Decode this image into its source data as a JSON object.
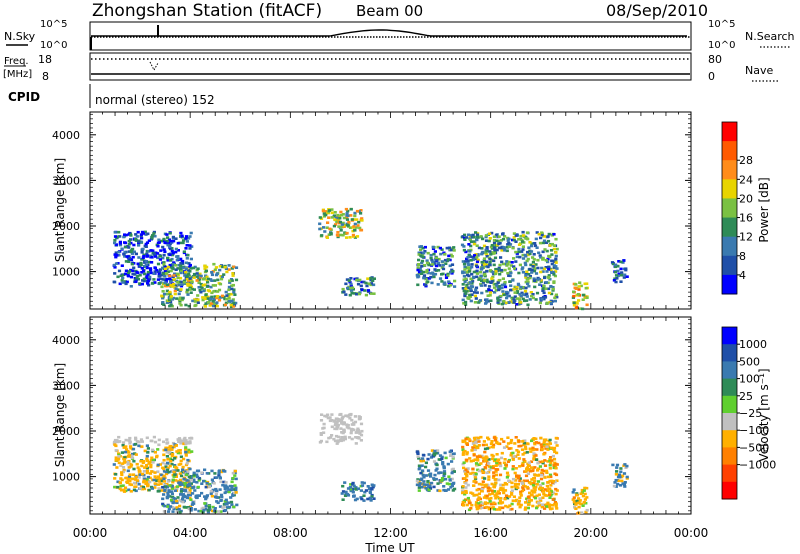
{
  "header": {
    "station": "Zhongshan Station (fitACF)",
    "beam": "Beam 00",
    "date": "08/Sep/2010"
  },
  "status_panel": {
    "nsky_label": "N.Sky",
    "nsearch_label": "N.Search",
    "noise_ticks_left": [
      "10^5",
      "10^0"
    ],
    "noise_ticks_right": [
      "10^5",
      "10^0"
    ],
    "freq_label_line1": "Freq.",
    "freq_label_line2": "[MHz]",
    "freq_ticks": [
      "18",
      "8"
    ],
    "nave_label": "Nave",
    "nave_ticks": [
      "80",
      "0"
    ],
    "cpid_label": "CPID",
    "cpid_text": "normal (stereo) 152"
  },
  "colors": {
    "power": [
      "#0000ff",
      "#1f4fa8",
      "#3a7ab0",
      "#2e8b57",
      "#7ac143",
      "#e8d400",
      "#ff8c1a",
      "#ff5a00",
      "#ff0000"
    ],
    "velocity": [
      "#0000ff",
      "#1f4fa8",
      "#3a7ab0",
      "#2e8b57",
      "#5fcf2f",
      "#c0c0c0",
      "#ffb000",
      "#ff8000",
      "#ff4000",
      "#ff0000"
    ],
    "ground_scatter": "#c0c0c0"
  },
  "chart_data": [
    {
      "type": "heatmap",
      "name": "power",
      "ylabel": "Slant Range [km]",
      "xlabel": "",
      "ylim": [
        180,
        4500
      ],
      "xlim": [
        0,
        24
      ],
      "yticks": [
        "1000",
        "2000",
        "3000",
        "4000"
      ],
      "xticks": [
        "00:00",
        "04:00",
        "08:00",
        "12:00",
        "16:00",
        "20:00",
        "00:00"
      ],
      "colorbar_label": "Power [dB]",
      "colorbar_ticks": [
        "4",
        "8",
        "12",
        "16",
        "20",
        "24",
        "28"
      ],
      "regions": [
        {
          "t": [
            0.9,
            4.0
          ],
          "r": [
            700,
            1900
          ],
          "v": 6
        },
        {
          "t": [
            2.8,
            5.8
          ],
          "r": [
            250,
            1200
          ],
          "v": 14
        },
        {
          "t": [
            9.1,
            10.8
          ],
          "r": [
            1750,
            2400
          ],
          "v": 16
        },
        {
          "t": [
            10.0,
            11.3
          ],
          "r": [
            500,
            900
          ],
          "v": 10
        },
        {
          "t": [
            13.0,
            14.5
          ],
          "r": [
            700,
            1600
          ],
          "v": 9
        },
        {
          "t": [
            14.8,
            18.6
          ],
          "r": [
            300,
            1900
          ],
          "v": 11
        },
        {
          "t": [
            19.2,
            19.8
          ],
          "r": [
            200,
            800
          ],
          "v": 20
        },
        {
          "t": [
            20.8,
            21.4
          ],
          "r": [
            800,
            1300
          ],
          "v": 6
        }
      ]
    },
    {
      "type": "heatmap",
      "name": "velocity",
      "ylabel": "Slant Range [km]",
      "xlabel": "Time UT",
      "ylim": [
        180,
        4500
      ],
      "xlim": [
        0,
        24
      ],
      "yticks": [
        "1000",
        "2000",
        "3000",
        "4000"
      ],
      "xticks": [
        "00:00",
        "04:00",
        "08:00",
        "12:00",
        "16:00",
        "20:00",
        "00:00"
      ],
      "colorbar_label": "Velocity [m s⁻¹]",
      "colorbar_ticks": [
        "1000",
        "500",
        "100",
        "25",
        "−25",
        "−100",
        "−500",
        "−1000"
      ],
      "regions": [
        {
          "t": [
            0.9,
            4.0
          ],
          "r": [
            700,
            1900
          ],
          "v": -150,
          "gs_band": [
            1750,
            1950
          ]
        },
        {
          "t": [
            2.8,
            5.8
          ],
          "r": [
            250,
            1200
          ],
          "v": 200
        },
        {
          "t": [
            9.1,
            10.8
          ],
          "r": [
            1750,
            2400
          ],
          "v": 0,
          "gs": true
        },
        {
          "t": [
            10.0,
            11.3
          ],
          "r": [
            500,
            900
          ],
          "v": 300
        },
        {
          "t": [
            13.0,
            14.5
          ],
          "r": [
            700,
            1600
          ],
          "v": 200
        },
        {
          "t": [
            14.8,
            18.6
          ],
          "r": [
            300,
            1900
          ],
          "v": -300
        },
        {
          "t": [
            19.2,
            19.8
          ],
          "r": [
            200,
            800
          ],
          "v": -200
        },
        {
          "t": [
            20.8,
            21.4
          ],
          "r": [
            800,
            1300
          ],
          "v": 150
        }
      ]
    }
  ]
}
